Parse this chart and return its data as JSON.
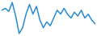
{
  "values": [
    3.5,
    4.0,
    3.2,
    5.5,
    2.0,
    -2.5,
    -1.0,
    2.5,
    5.0,
    2.5,
    4.5,
    1.0,
    -1.0,
    0.5,
    -0.5,
    1.5,
    3.5,
    2.5,
    4.0,
    2.5,
    1.5,
    3.0,
    2.0,
    3.5,
    1.5,
    2.5,
    1.0,
    0.0
  ],
  "line_color": "#2b8cce",
  "background_color": "#ffffff",
  "linewidth": 1.1
}
